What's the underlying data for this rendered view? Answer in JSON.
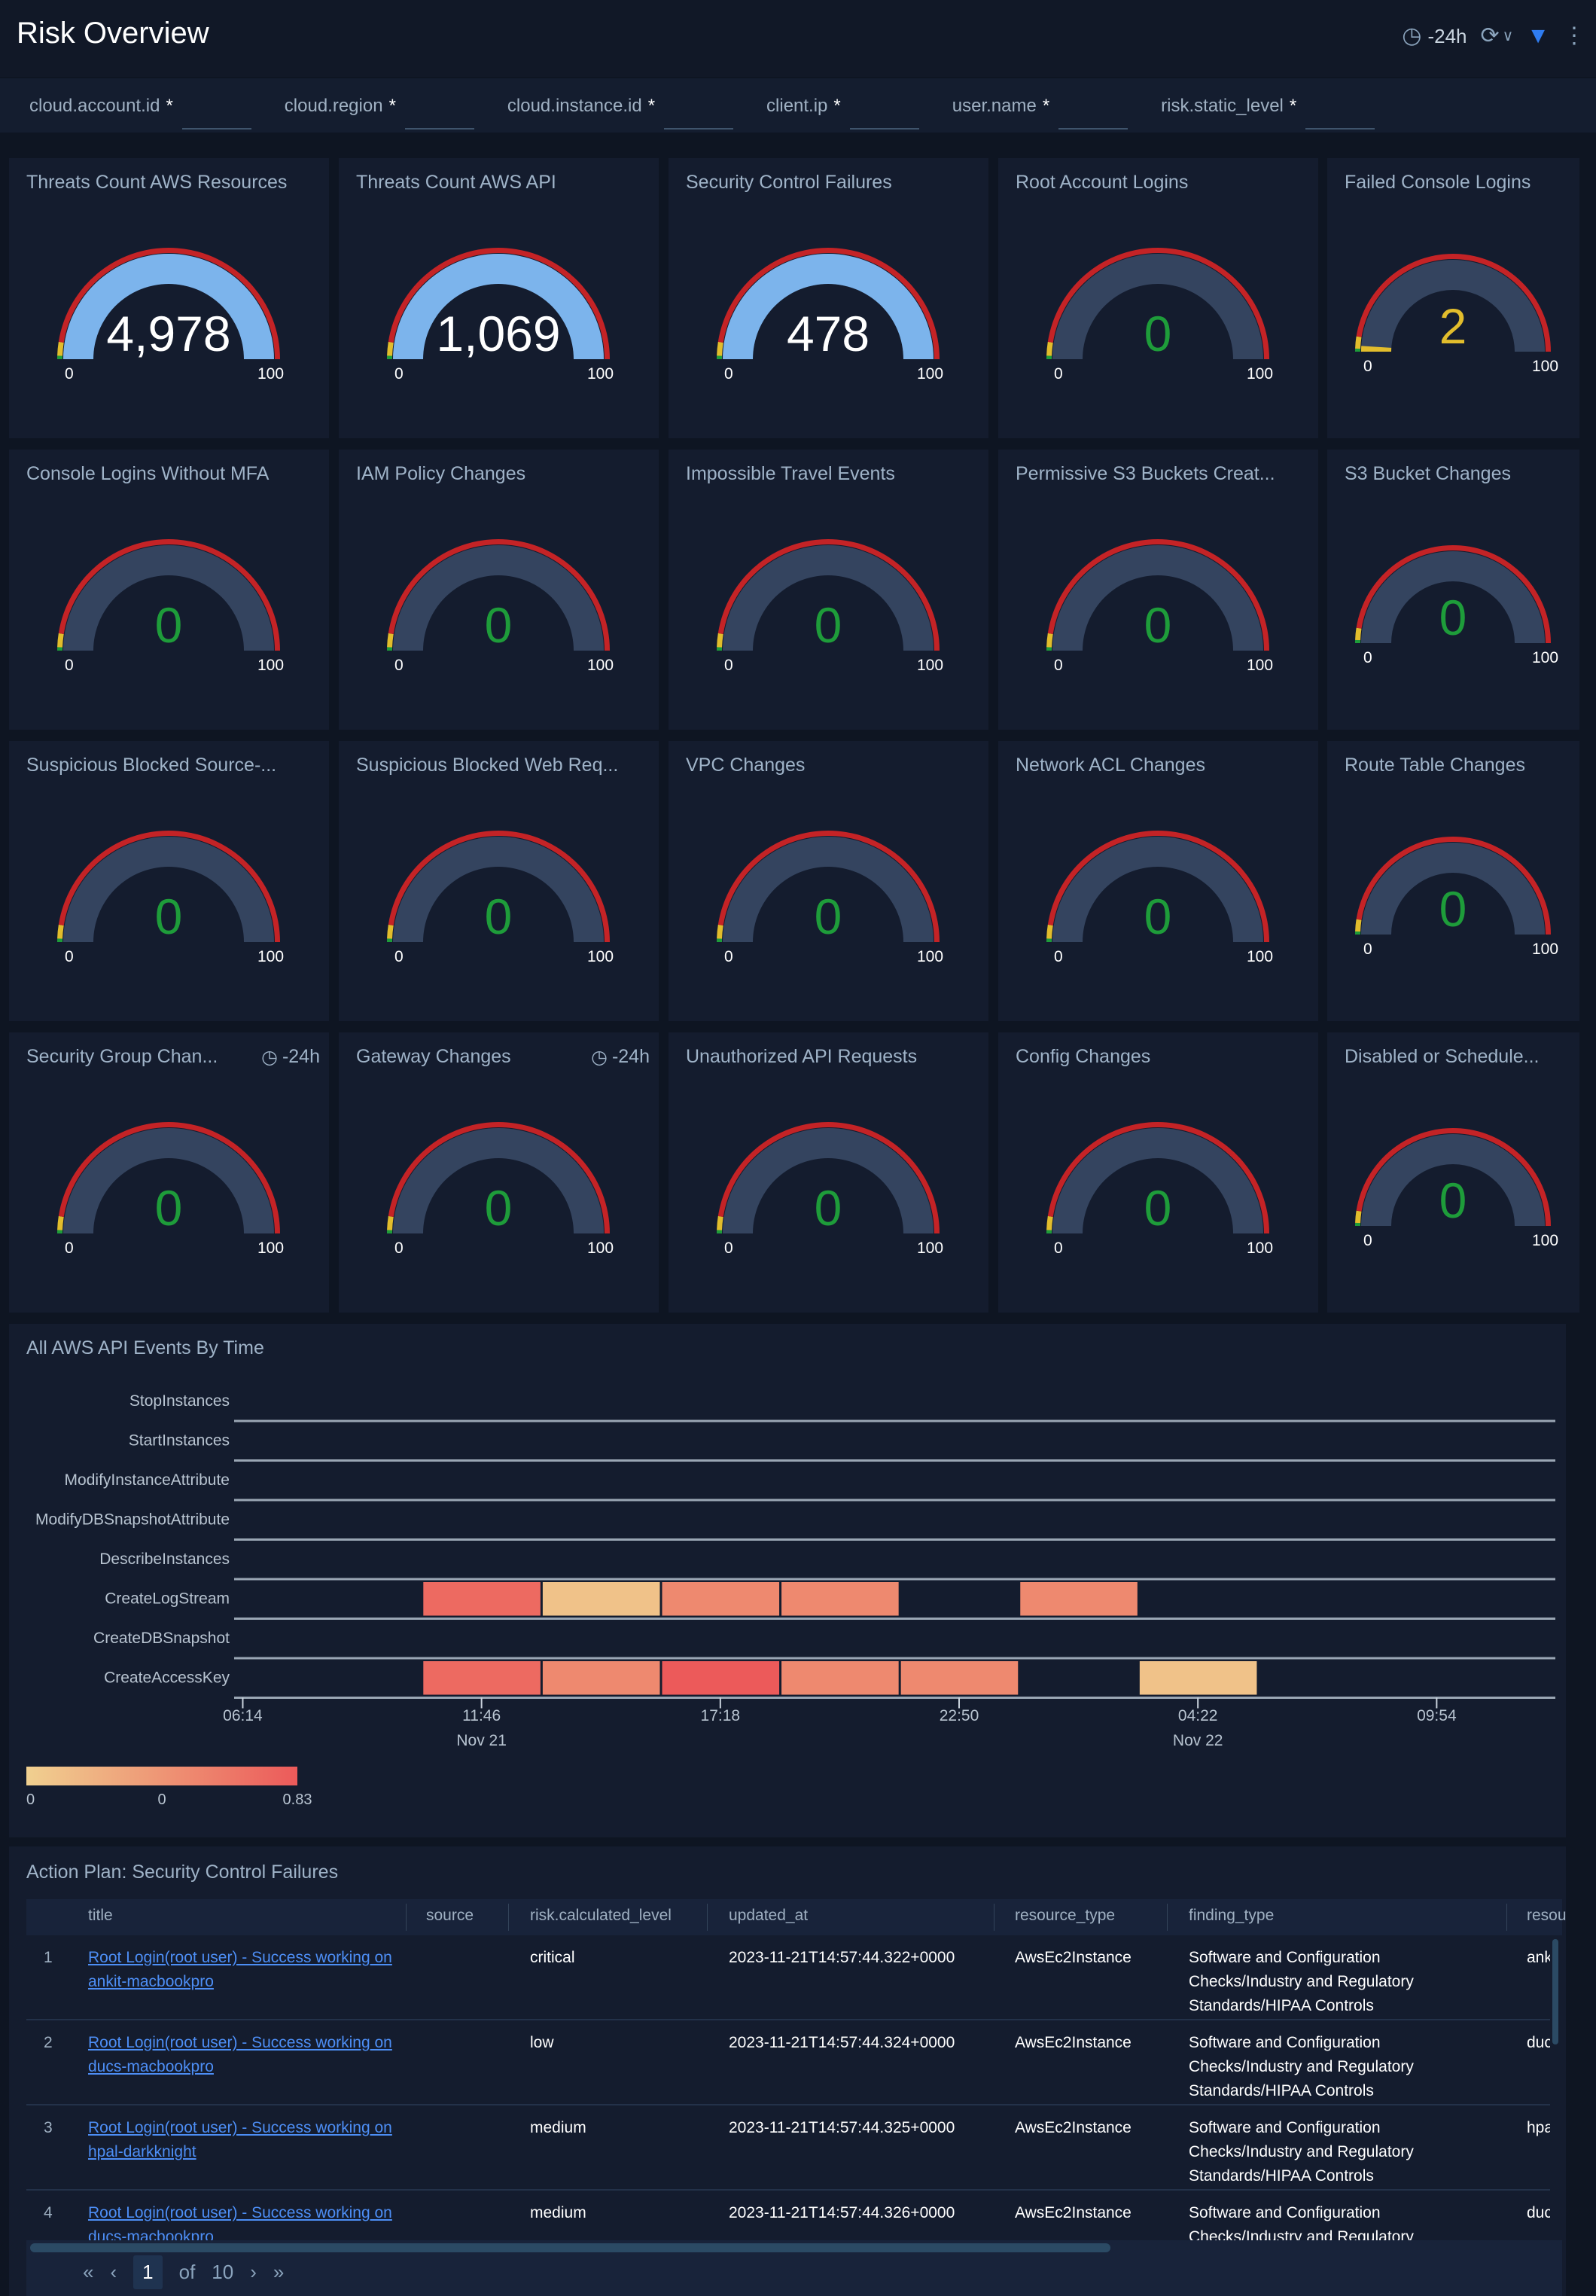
{
  "header": {
    "title": "Risk Overview",
    "time_range": "-24h"
  },
  "filters": [
    {
      "label": "cloud.account.id",
      "value": "*"
    },
    {
      "label": "cloud.region",
      "value": "*"
    },
    {
      "label": "cloud.instance.id",
      "value": "*"
    },
    {
      "label": "client.ip",
      "value": "*"
    },
    {
      "label": "user.name",
      "value": "*"
    },
    {
      "label": "risk.static_level",
      "value": "*"
    }
  ],
  "colors": {
    "band": "#34445f",
    "fill_blue": "#7cb4ec",
    "green": "#1e9c3a",
    "yellow": "#e2bd2c",
    "red": "#c42326",
    "white": "#ffffff"
  },
  "gauges": [
    {
      "title": "Threats Count AWS Resources",
      "value": 4978,
      "display": "4,978",
      "min": "0",
      "max": "100",
      "value_color": "#ffffff",
      "fill_color": "#7cb4ec"
    },
    {
      "title": "Threats Count AWS API",
      "value": 1069,
      "display": "1,069",
      "min": "0",
      "max": "100",
      "value_color": "#ffffff",
      "fill_color": "#7cb4ec"
    },
    {
      "title": "Security Control Failures",
      "value": 478,
      "display": "478",
      "min": "0",
      "max": "100",
      "value_color": "#ffffff",
      "fill_color": "#7cb4ec"
    },
    {
      "title": "Root Account Logins",
      "value": 0,
      "display": "0",
      "min": "0",
      "max": "100",
      "value_color": "#1e9c3a",
      "fill_color": "#1e9c3a"
    },
    {
      "title": "Failed Console Logins",
      "value": 2,
      "display": "2",
      "min": "0",
      "max": "100",
      "value_color": "#e2bd2c",
      "fill_color": "#e2bd2c"
    },
    {
      "title": "Console Logins Without MFA",
      "value": 0,
      "display": "0",
      "min": "0",
      "max": "100",
      "value_color": "#1e9c3a",
      "fill_color": "#1e9c3a"
    },
    {
      "title": "IAM Policy Changes",
      "value": 0,
      "display": "0",
      "min": "0",
      "max": "100",
      "value_color": "#1e9c3a",
      "fill_color": "#1e9c3a"
    },
    {
      "title": "Impossible Travel Events",
      "value": 0,
      "display": "0",
      "min": "0",
      "max": "100",
      "value_color": "#1e9c3a",
      "fill_color": "#1e9c3a"
    },
    {
      "title": "Permissive S3 Buckets Creat...",
      "value": 0,
      "display": "0",
      "min": "0",
      "max": "100",
      "value_color": "#1e9c3a",
      "fill_color": "#1e9c3a"
    },
    {
      "title": "S3 Bucket Changes",
      "value": 0,
      "display": "0",
      "min": "0",
      "max": "100",
      "value_color": "#1e9c3a",
      "fill_color": "#1e9c3a"
    },
    {
      "title": "Suspicious Blocked Source-...",
      "value": 0,
      "display": "0",
      "min": "0",
      "max": "100",
      "value_color": "#1e9c3a",
      "fill_color": "#1e9c3a"
    },
    {
      "title": "Suspicious Blocked Web Req...",
      "value": 0,
      "display": "0",
      "min": "0",
      "max": "100",
      "value_color": "#1e9c3a",
      "fill_color": "#1e9c3a"
    },
    {
      "title": "VPC Changes",
      "value": 0,
      "display": "0",
      "min": "0",
      "max": "100",
      "value_color": "#1e9c3a",
      "fill_color": "#1e9c3a"
    },
    {
      "title": "Network ACL Changes",
      "value": 0,
      "display": "0",
      "min": "0",
      "max": "100",
      "value_color": "#1e9c3a",
      "fill_color": "#1e9c3a"
    },
    {
      "title": "Route Table Changes",
      "value": 0,
      "display": "0",
      "min": "0",
      "max": "100",
      "value_color": "#1e9c3a",
      "fill_color": "#1e9c3a"
    },
    {
      "title": "Security Group Chan...",
      "badge": "-24h",
      "value": 0,
      "display": "0",
      "min": "0",
      "max": "100",
      "value_color": "#1e9c3a",
      "fill_color": "#1e9c3a"
    },
    {
      "title": "Gateway Changes",
      "badge": "-24h",
      "value": 0,
      "display": "0",
      "min": "0",
      "max": "100",
      "value_color": "#1e9c3a",
      "fill_color": "#1e9c3a"
    },
    {
      "title": "Unauthorized API Requests",
      "value": 0,
      "display": "0",
      "min": "0",
      "max": "100",
      "value_color": "#1e9c3a",
      "fill_color": "#1e9c3a"
    },
    {
      "title": "Config Changes",
      "value": 0,
      "display": "0",
      "min": "0",
      "max": "100",
      "value_color": "#1e9c3a",
      "fill_color": "#1e9c3a"
    },
    {
      "title": "Disabled or Schedule...",
      "value": 0,
      "display": "0",
      "min": "0",
      "max": "100",
      "value_color": "#1e9c3a",
      "fill_color": "#1e9c3a"
    }
  ],
  "chart_data": {
    "type": "heatmap",
    "title": "All AWS API Events By Time",
    "rows": [
      "StopInstances",
      "StartInstances",
      "ModifyInstanceAttribute",
      "ModifyDBSnapshotAttribute",
      "DescribeInstances",
      "CreateLogStream",
      "CreateDBSnapshot",
      "CreateAccessKey"
    ],
    "x_unit": "minutes since Nov 21 06:14",
    "xlim": [
      -12,
      1825
    ],
    "bucket_minutes": 166,
    "x_ticks": [
      {
        "label": "06:14",
        "min": 0
      },
      {
        "label": "11:46",
        "min": 332,
        "date": "Nov 21"
      },
      {
        "label": "17:18",
        "min": 664
      },
      {
        "label": "22:50",
        "min": 996
      },
      {
        "label": "04:22",
        "min": 1328,
        "date": "Nov 22"
      },
      {
        "label": "09:54",
        "min": 1660
      }
    ],
    "cells": [
      {
        "row": "CreateLogStream",
        "start": 250,
        "value": 0.72
      },
      {
        "row": "CreateLogStream",
        "start": 416,
        "value": 0.1
      },
      {
        "row": "CreateLogStream",
        "start": 582,
        "value": 0.5
      },
      {
        "row": "CreateLogStream",
        "start": 748,
        "value": 0.5
      },
      {
        "row": "CreateLogStream",
        "start": 1080,
        "value": 0.5
      },
      {
        "row": "CreateAccessKey",
        "start": 250,
        "value": 0.72
      },
      {
        "row": "CreateAccessKey",
        "start": 416,
        "value": 0.5
      },
      {
        "row": "CreateAccessKey",
        "start": 582,
        "value": 0.83
      },
      {
        "row": "CreateAccessKey",
        "start": 748,
        "value": 0.5
      },
      {
        "row": "CreateAccessKey",
        "start": 914,
        "value": 0.5
      },
      {
        "row": "CreateAccessKey",
        "start": 1246,
        "value": 0.1
      }
    ],
    "color_range": [
      0,
      0.83
    ],
    "color_low": "#f0d090",
    "color_high": "#ec5a5a",
    "legend_labels": [
      "0",
      "0",
      "0.83"
    ]
  },
  "table": {
    "title": "Action Plan: Security Control Failures",
    "columns": [
      "title",
      "source",
      "risk.calculated_level",
      "updated_at",
      "resource_type",
      "finding_type",
      "resou"
    ],
    "rows": [
      {
        "n": "1",
        "title": "Root Login(root user) - Success working on ankit-macbookpro",
        "source": "",
        "level": "critical",
        "updated": "2023-11-21T14:57:44.322+0000",
        "rtype": "AwsEc2Instance",
        "finding": "Software and Configuration Checks/Industry and Regulatory Standards/HIPAA Controls",
        "res": "ank"
      },
      {
        "n": "2",
        "title": "Root Login(root user) - Success working on ducs-macbookpro",
        "source": "",
        "level": "low",
        "updated": "2023-11-21T14:57:44.324+0000",
        "rtype": "AwsEc2Instance",
        "finding": "Software and Configuration Checks/Industry and Regulatory Standards/HIPAA Controls",
        "res": "duc"
      },
      {
        "n": "3",
        "title": "Root Login(root user) - Success working on hpal-darkknight",
        "source": "",
        "level": "medium",
        "updated": "2023-11-21T14:57:44.325+0000",
        "rtype": "AwsEc2Instance",
        "finding": "Software and Configuration Checks/Industry and Regulatory Standards/HIPAA Controls",
        "res": "hpa"
      },
      {
        "n": "4",
        "title": "Root Login(root user) - Success working on ducs-macbookpro",
        "source": "",
        "level": "medium",
        "updated": "2023-11-21T14:57:44.326+0000",
        "rtype": "AwsEc2Instance",
        "finding": "Software and Configuration Checks/Industry and Regulatory",
        "res": "duc"
      }
    ],
    "pagination": {
      "first": "«",
      "prev": "‹",
      "page": "1",
      "of": "of",
      "total": "10",
      "next": "›",
      "last": "»"
    }
  }
}
